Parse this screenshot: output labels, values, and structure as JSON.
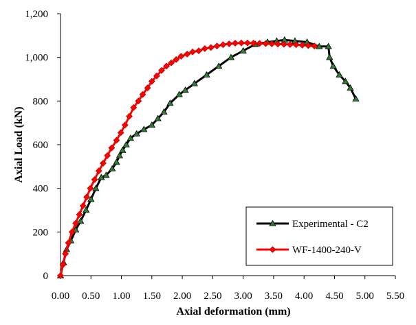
{
  "chart_data": {
    "type": "line",
    "xlabel": "Axial deformation (mm)",
    "ylabel": "Axial Load (kN)",
    "xlim": [
      0,
      5.5
    ],
    "ylim": [
      0,
      1200
    ],
    "xticks": [
      "0.00",
      "0.50",
      "1.00",
      "1.50",
      "2.00",
      "2.50",
      "3.00",
      "3.50",
      "4.00",
      "4.50",
      "5.00",
      "5.50"
    ],
    "yticks": [
      "0",
      "200",
      "400",
      "600",
      "800",
      "1,000",
      "1,200"
    ],
    "grid": false,
    "legend_position": "bottom-right",
    "series": [
      {
        "name": "Experimental - C2",
        "color": "#000000",
        "marker": "triangle",
        "marker_color": "#2e7d32",
        "x": [
          0.0,
          0.05,
          0.1,
          0.17,
          0.25,
          0.33,
          0.42,
          0.5,
          0.58,
          0.67,
          0.75,
          0.85,
          0.92,
          0.97,
          1.02,
          1.08,
          1.15,
          1.25,
          1.37,
          1.5,
          1.6,
          1.7,
          1.8,
          1.95,
          2.05,
          2.2,
          2.4,
          2.6,
          2.8,
          3.0,
          3.2,
          3.4,
          3.55,
          3.68,
          3.85,
          4.05,
          4.25,
          4.4,
          4.42,
          4.48,
          4.58,
          4.68,
          4.76,
          4.85
        ],
        "y": [
          0,
          60,
          120,
          160,
          210,
          250,
          300,
          350,
          400,
          450,
          460,
          490,
          520,
          550,
          575,
          600,
          630,
          650,
          670,
          690,
          720,
          750,
          790,
          830,
          850,
          880,
          920,
          960,
          1000,
          1030,
          1060,
          1070,
          1075,
          1080,
          1075,
          1070,
          1050,
          1050,
          1000,
          960,
          920,
          890,
          860,
          810
        ]
      },
      {
        "name": "WF-1400-240-V",
        "color": "#ff0000",
        "marker": "diamond",
        "marker_color": "#ff0000",
        "x": [
          0.0,
          0.04,
          0.08,
          0.13,
          0.19,
          0.25,
          0.31,
          0.37,
          0.43,
          0.49,
          0.56,
          0.63,
          0.7,
          0.77,
          0.84,
          0.92,
          0.99,
          1.06,
          1.13,
          1.2,
          1.28,
          1.35,
          1.43,
          1.5,
          1.58,
          1.66,
          1.74,
          1.82,
          1.9,
          1.98,
          2.08,
          2.17,
          2.27,
          2.37,
          2.47,
          2.57,
          2.67,
          2.77,
          2.87,
          2.97,
          3.07,
          3.17,
          3.27,
          3.37,
          3.47,
          3.57,
          3.67,
          3.77,
          3.87,
          3.97,
          4.07,
          4.17
        ],
        "y": [
          0,
          50,
          100,
          150,
          200,
          240,
          280,
          320,
          360,
          400,
          440,
          480,
          515,
          550,
          585,
          620,
          655,
          690,
          730,
          770,
          800,
          830,
          860,
          890,
          915,
          940,
          960,
          975,
          990,
          1005,
          1015,
          1025,
          1030,
          1040,
          1045,
          1052,
          1058,
          1062,
          1065,
          1066,
          1066,
          1065,
          1064,
          1063,
          1062,
          1061,
          1060,
          1059,
          1058,
          1056,
          1054,
          1052
        ]
      }
    ]
  }
}
